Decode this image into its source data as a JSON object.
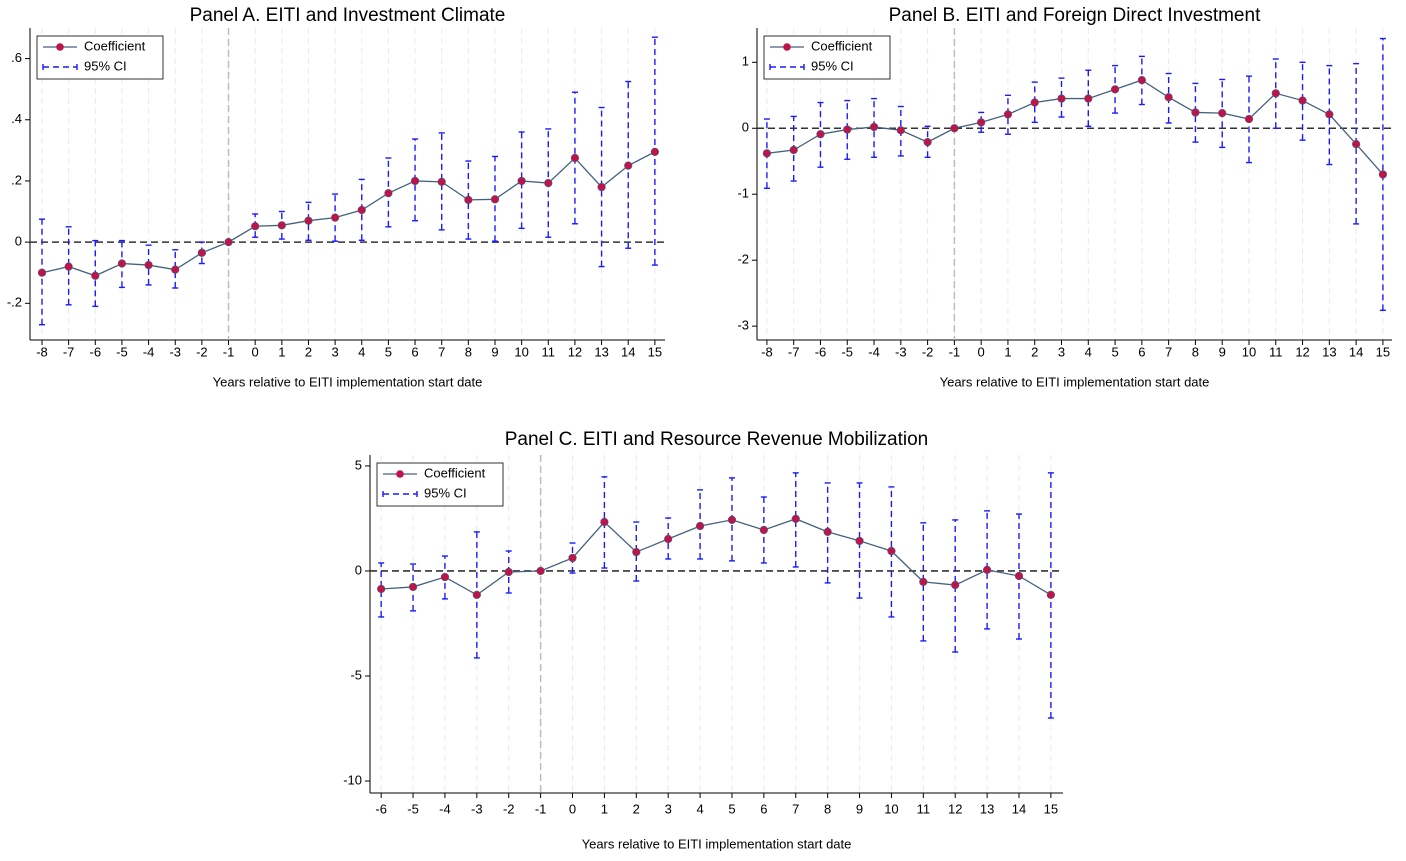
{
  "chart_data": [
    {
      "type": "line",
      "title": "Panel A. EITI and Investment Climate",
      "xlabel": "Years relative to EITI implementation start date",
      "x": [
        -8,
        -7,
        -6,
        -5,
        -4,
        -3,
        -2,
        -1,
        0,
        1,
        2,
        3,
        4,
        5,
        6,
        7,
        8,
        9,
        10,
        11,
        12,
        13,
        14,
        15
      ],
      "xlim": [
        -8.45,
        15.38
      ],
      "xticks": [
        -8,
        -7,
        -6,
        -5,
        -4,
        -3,
        -2,
        -1,
        0,
        1,
        2,
        3,
        4,
        5,
        6,
        7,
        8,
        9,
        10,
        11,
        12,
        13,
        14,
        15
      ],
      "ylim": [
        -0.32,
        0.7
      ],
      "yticks": [
        {
          "value": -0.2,
          "label": "-.2"
        },
        0,
        {
          "value": 0.2,
          "label": ".2"
        },
        {
          "value": 0.4,
          "label": ".4"
        },
        {
          "value": 0.6,
          "label": ".6"
        }
      ],
      "grid": "x",
      "xline": -1,
      "yline": 0,
      "legend": "top-left",
      "series": [
        {
          "name": "Coefficient",
          "color": "#44627e",
          "marker_color": "#c0134a",
          "values": [
            -0.1,
            -0.08,
            -0.11,
            -0.07,
            -0.075,
            -0.09,
            -0.035,
            0,
            0.052,
            0.055,
            0.07,
            0.08,
            0.105,
            0.16,
            0.2,
            0.197,
            0.138,
            0.14,
            0.2,
            0.193,
            0.275,
            0.18,
            0.25,
            0.295
          ]
        },
        {
          "name": "95% CI",
          "color": "#1a1aff",
          "lower": [
            -0.27,
            -0.205,
            -0.21,
            -0.148,
            -0.14,
            -0.15,
            -0.07,
            null,
            0.016,
            0.01,
            0.006,
            0.003,
            0.006,
            0.05,
            0.07,
            0.04,
            0.01,
            0.003,
            0.045,
            0.016,
            0.06,
            -0.08,
            -0.02,
            -0.075
          ],
          "upper": [
            0.075,
            0.05,
            0.005,
            0.005,
            -0.01,
            -0.025,
            0,
            null,
            0.092,
            0.1,
            0.13,
            0.157,
            0.205,
            0.275,
            0.337,
            0.357,
            0.265,
            0.28,
            0.36,
            0.37,
            0.49,
            0.44,
            0.525,
            0.67
          ]
        }
      ]
    },
    {
      "type": "line",
      "title": "Panel B. EITI and Foreign Direct Investment",
      "xlabel": "Years relative to EITI implementation start date",
      "x": [
        -8,
        -7,
        -6,
        -5,
        -4,
        -3,
        -2,
        -1,
        0,
        1,
        2,
        3,
        4,
        5,
        6,
        7,
        8,
        9,
        10,
        11,
        12,
        13,
        14,
        15
      ],
      "xlim": [
        -8.37,
        15.34
      ],
      "xticks": [
        -8,
        -7,
        -6,
        -5,
        -4,
        -3,
        -2,
        -1,
        0,
        1,
        2,
        3,
        4,
        5,
        6,
        7,
        8,
        9,
        10,
        11,
        12,
        13,
        14,
        15
      ],
      "ylim": [
        -3.21,
        1.52
      ],
      "yticks": [
        -3,
        -2,
        -1,
        0,
        1
      ],
      "grid": "x",
      "xline": -1,
      "yline": 0,
      "legend": "top-left",
      "series": [
        {
          "name": "Coefficient",
          "color": "#44627e",
          "marker_color": "#c0134a",
          "values": [
            -0.38,
            -0.33,
            -0.09,
            -0.02,
            0.02,
            -0.03,
            -0.21,
            0,
            0.09,
            0.21,
            0.39,
            0.45,
            0.45,
            0.59,
            0.73,
            0.47,
            0.24,
            0.23,
            0.14,
            0.53,
            0.42,
            0.21,
            -0.24,
            -0.7
          ]
        },
        {
          "name": "95% CI",
          "color": "#1a1aff",
          "lower": [
            -0.91,
            -0.8,
            -0.59,
            -0.47,
            -0.44,
            -0.42,
            -0.44,
            null,
            -0.06,
            -0.09,
            0.09,
            0.17,
            0.03,
            0.23,
            0.36,
            0.08,
            -0.21,
            -0.29,
            -0.52,
            0.0,
            -0.18,
            -0.55,
            -1.45,
            -2.76
          ],
          "upper": [
            0.14,
            0.18,
            0.39,
            0.42,
            0.45,
            0.33,
            0.03,
            null,
            0.24,
            0.5,
            0.7,
            0.76,
            0.88,
            0.95,
            1.09,
            0.83,
            0.68,
            0.74,
            0.79,
            1.05,
            1.0,
            0.95,
            0.98,
            1.36
          ]
        }
      ]
    },
    {
      "type": "line",
      "title": "Panel C. EITI and Resource Revenue Mobilization",
      "xlabel": "Years relative to EITI implementation start date",
      "x": [
        -6,
        -5,
        -4,
        -3,
        -2,
        -1,
        0,
        1,
        2,
        3,
        4,
        5,
        6,
        7,
        8,
        9,
        10,
        11,
        12,
        13,
        14,
        15
      ],
      "xlim": [
        -6.35,
        15.38
      ],
      "xticks": [
        -6,
        -5,
        -4,
        -3,
        -2,
        -1,
        0,
        1,
        2,
        3,
        4,
        5,
        6,
        7,
        8,
        9,
        10,
        11,
        12,
        13,
        14,
        15
      ],
      "ylim": [
        -10.57,
        5.52
      ],
      "yticks": [
        -10,
        -5,
        0,
        5
      ],
      "grid": "x",
      "xline": -1,
      "yline": 0,
      "legend": "top-left",
      "series": [
        {
          "name": "Coefficient",
          "color": "#44627e",
          "marker_color": "#c0134a",
          "values": [
            -0.86,
            -0.76,
            -0.29,
            -1.14,
            -0.05,
            0,
            0.62,
            2.33,
            0.9,
            1.52,
            2.14,
            2.43,
            1.95,
            2.48,
            1.86,
            1.43,
            0.95,
            -0.52,
            -0.67,
            0.05,
            -0.24,
            -1.14
          ]
        },
        {
          "name": "95% CI",
          "color": "#1a1aff",
          "lower": [
            -2.19,
            -1.9,
            -1.33,
            -4.14,
            -1.05,
            null,
            -0.1,
            0.14,
            -0.48,
            0.57,
            0.57,
            0.48,
            0.38,
            0.19,
            -0.57,
            -1.29,
            -2.19,
            -3.33,
            -3.86,
            -2.76,
            -3.24,
            -7.0
          ],
          "upper": [
            0.38,
            0.33,
            0.71,
            1.86,
            0.95,
            null,
            1.33,
            4.48,
            2.33,
            2.52,
            3.86,
            4.43,
            3.52,
            4.67,
            4.19,
            4.19,
            4.0,
            2.29,
            2.43,
            2.86,
            2.71,
            4.67
          ]
        }
      ]
    }
  ]
}
